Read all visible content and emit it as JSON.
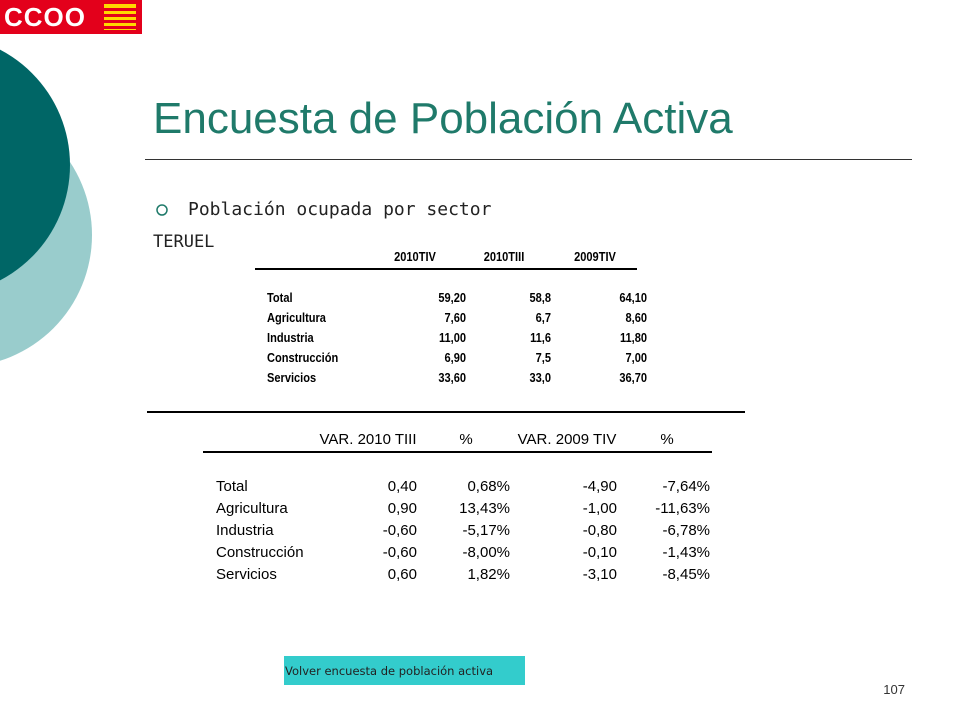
{
  "logo": "CCOO",
  "title": "Encuesta de Población Activa",
  "bullet": "Población ocupada por sector",
  "region": "TERUEL",
  "table1": {
    "headers": [
      "2010TIV",
      "2010TIII",
      "2009TIV"
    ],
    "rows": [
      [
        "Total",
        "59,20",
        "58,8",
        "64,10"
      ],
      [
        "Agricultura",
        "7,60",
        "6,7",
        "8,60"
      ],
      [
        "Industria",
        "11,00",
        "11,6",
        "11,80"
      ],
      [
        "Construcción",
        "6,90",
        "7,5",
        "7,00"
      ],
      [
        "Servicios",
        "33,60",
        "33,0",
        "36,70"
      ]
    ]
  },
  "table2": {
    "headers": [
      "VAR. 2010 TIII",
      "%",
      "VAR. 2009 TIV",
      "%"
    ],
    "rows": [
      [
        "Total",
        "0,40",
        "0,68%",
        "-4,90",
        "-7,64%"
      ],
      [
        "Agricultura",
        "0,90",
        "13,43%",
        "-1,00",
        "-11,63%"
      ],
      [
        "Industria",
        "-0,60",
        "-5,17%",
        "-0,80",
        "-6,78%"
      ],
      [
        "Construcción",
        "-0,60",
        "-8,00%",
        "-0,10",
        "-1,43%"
      ],
      [
        "Servicios",
        "0,60",
        "1,82%",
        "-3,10",
        "-8,45%"
      ]
    ]
  },
  "button": "Volver encuesta de población activa",
  "page_number": "107"
}
